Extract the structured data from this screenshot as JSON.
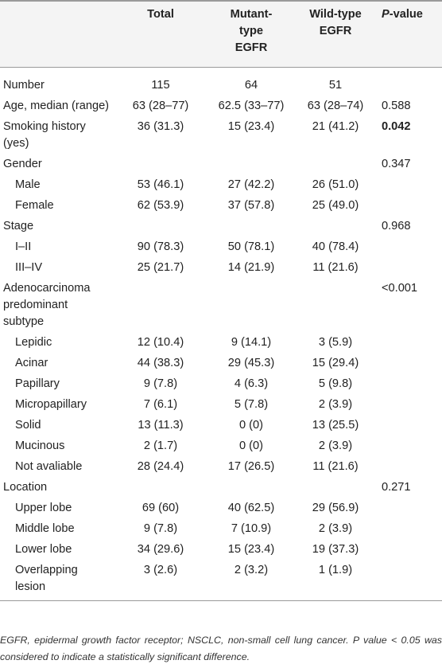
{
  "header": {
    "col0": "",
    "total": "Total",
    "mutant": "Mutant-type EGFR",
    "wild": "Wild-type EGFR",
    "pvalue_italic": "P",
    "pvalue_rest": "-value"
  },
  "rows": [
    {
      "label": "Number",
      "total": "115",
      "mutant": "64",
      "wild": "51",
      "p": ""
    },
    {
      "label": "Age, median (range)",
      "total": "63 (28–77)",
      "mutant": "62.5 (33–77)",
      "wild": "63 (28–74)",
      "p": "0.588"
    },
    {
      "label": "Smoking history (yes)",
      "total": "36 (31.3)",
      "mutant": "15 (23.4)",
      "wild": "21 (41.2)",
      "p": "0.042"
    },
    {
      "label": "Gender",
      "total": "",
      "mutant": "",
      "wild": "",
      "p": "0.347"
    },
    {
      "label": "Male",
      "total": "53 (46.1)",
      "mutant": "27 (42.2)",
      "wild": "26 (51.0)",
      "p": ""
    },
    {
      "label": "Female",
      "total": "62 (53.9)",
      "mutant": "37 (57.8)",
      "wild": "25 (49.0)",
      "p": ""
    },
    {
      "label": "Stage",
      "total": "",
      "mutant": "",
      "wild": "",
      "p": "0.968"
    },
    {
      "label": "I–II",
      "total": "90 (78.3)",
      "mutant": "50 (78.1)",
      "wild": "40 (78.4)",
      "p": ""
    },
    {
      "label": "III–IV",
      "total": "25 (21.7)",
      "mutant": "14 (21.9)",
      "wild": "11 (21.6)",
      "p": ""
    },
    {
      "label": "Adenocarcinoma predominant subtype",
      "total": "",
      "mutant": "",
      "wild": "",
      "p": "<0.001"
    },
    {
      "label": "Lepidic",
      "total": "12 (10.4)",
      "mutant": "9 (14.1)",
      "wild": "3 (5.9)",
      "p": ""
    },
    {
      "label": "Acinar",
      "total": "44 (38.3)",
      "mutant": "29 (45.3)",
      "wild": "15 (29.4)",
      "p": ""
    },
    {
      "label": "Papillary",
      "total": "9 (7.8)",
      "mutant": "4 (6.3)",
      "wild": "5 (9.8)",
      "p": ""
    },
    {
      "label": "Micropapillary",
      "total": "7 (6.1)",
      "mutant": "5 (7.8)",
      "wild": "2 (3.9)",
      "p": ""
    },
    {
      "label": "Solid",
      "total": "13 (11.3)",
      "mutant": "0 (0)",
      "wild": "13 (25.5)",
      "p": ""
    },
    {
      "label": "Mucinous",
      "total": "2 (1.7)",
      "mutant": "0 (0)",
      "wild": "2 (3.9)",
      "p": ""
    },
    {
      "label": "Not avaliable",
      "total": "28 (24.4)",
      "mutant": "17 (26.5)",
      "wild": "11 (21.6)",
      "p": ""
    },
    {
      "label": "Location",
      "total": "",
      "mutant": "",
      "wild": "",
      "p": "0.271"
    },
    {
      "label": "Upper lobe",
      "total": "69 (60)",
      "mutant": "40 (62.5)",
      "wild": "29 (56.9)",
      "p": ""
    },
    {
      "label": "Middle lobe",
      "total": "9 (7.8)",
      "mutant": "7 (10.9)",
      "wild": "2 (3.9)",
      "p": ""
    },
    {
      "label": "Lower lobe",
      "total": "34 (29.6)",
      "mutant": "15 (23.4)",
      "wild": "19 (37.3)",
      "p": ""
    },
    {
      "label": "Overlapping lesion",
      "total": "3 (2.6)",
      "mutant": "2 (3.2)",
      "wild": "1 (1.9)",
      "p": ""
    }
  ],
  "footnote": "EGFR, epidermal growth factor receptor; NSCLC, non-small cell lung cancer. P value < 0.05 was considered to indicate a statistically significant difference."
}
